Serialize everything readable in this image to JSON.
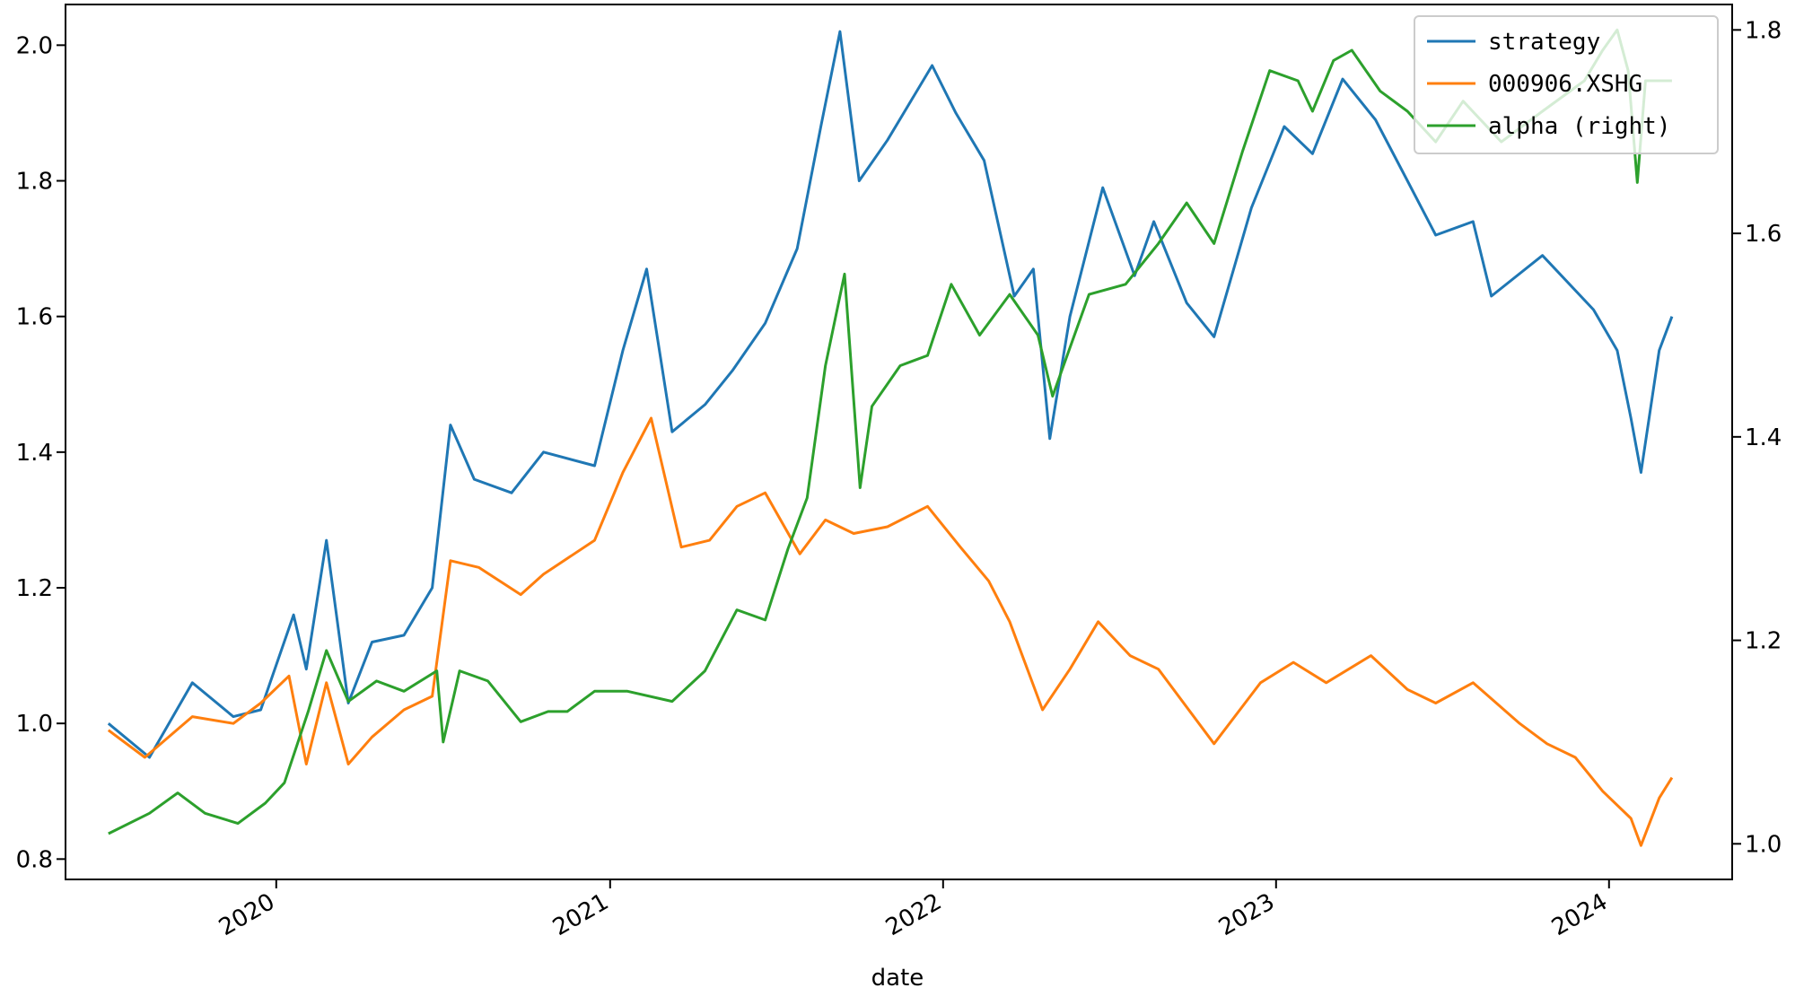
{
  "chart_data": {
    "type": "line",
    "xlabel": "date",
    "x_ticks": [
      "2020",
      "2021",
      "2022",
      "2023",
      "2024"
    ],
    "xlim": [
      "2019-05-15",
      "2024-05-15"
    ],
    "y_left": {
      "lim": [
        0.77,
        2.06
      ],
      "ticks": [
        "0.8",
        "1.0",
        "1.2",
        "1.4",
        "1.6",
        "1.8",
        "2.0"
      ]
    },
    "y_right": {
      "lim": [
        0.965,
        1.825
      ],
      "ticks": [
        "1.0",
        "1.2",
        "1.4",
        "1.6",
        "1.8"
      ]
    },
    "legend": {
      "position": "upper right"
    },
    "grid": false,
    "series": [
      {
        "name": "strategy",
        "axis": "left",
        "color": "#1f77b4",
        "points": [
          [
            "2019-07-01",
            1.0
          ],
          [
            "2019-08-15",
            0.95
          ],
          [
            "2019-10-01",
            1.06
          ],
          [
            "2019-11-15",
            1.01
          ],
          [
            "2019-12-15",
            1.02
          ],
          [
            "2020-01-20",
            1.16
          ],
          [
            "2020-02-03",
            1.08
          ],
          [
            "2020-02-25",
            1.27
          ],
          [
            "2020-03-20",
            1.03
          ],
          [
            "2020-04-15",
            1.12
          ],
          [
            "2020-05-20",
            1.13
          ],
          [
            "2020-06-20",
            1.2
          ],
          [
            "2020-07-10",
            1.44
          ],
          [
            "2020-08-05",
            1.36
          ],
          [
            "2020-09-15",
            1.34
          ],
          [
            "2020-10-20",
            1.4
          ],
          [
            "2020-12-15",
            1.38
          ],
          [
            "2021-01-15",
            1.55
          ],
          [
            "2021-02-10",
            1.67
          ],
          [
            "2021-03-10",
            1.43
          ],
          [
            "2021-04-15",
            1.47
          ],
          [
            "2021-05-15",
            1.52
          ],
          [
            "2021-06-20",
            1.59
          ],
          [
            "2021-07-25",
            1.7
          ],
          [
            "2021-08-20",
            1.88
          ],
          [
            "2021-09-10",
            2.02
          ],
          [
            "2021-10-01",
            1.8
          ],
          [
            "2021-11-01",
            1.86
          ],
          [
            "2021-12-20",
            1.97
          ],
          [
            "2022-01-15",
            1.9
          ],
          [
            "2022-02-15",
            1.83
          ],
          [
            "2022-03-20",
            1.63
          ],
          [
            "2022-04-10",
            1.67
          ],
          [
            "2022-04-28",
            1.42
          ],
          [
            "2022-05-20",
            1.6
          ],
          [
            "2022-06-25",
            1.79
          ],
          [
            "2022-07-30",
            1.66
          ],
          [
            "2022-08-20",
            1.74
          ],
          [
            "2022-09-25",
            1.62
          ],
          [
            "2022-10-25",
            1.57
          ],
          [
            "2022-12-05",
            1.76
          ],
          [
            "2023-01-10",
            1.88
          ],
          [
            "2023-02-10",
            1.84
          ],
          [
            "2023-03-15",
            1.95
          ],
          [
            "2023-04-20",
            1.89
          ],
          [
            "2023-05-25",
            1.8
          ],
          [
            "2023-06-25",
            1.72
          ],
          [
            "2023-08-05",
            1.74
          ],
          [
            "2023-08-25",
            1.63
          ],
          [
            "2023-10-20",
            1.69
          ],
          [
            "2023-12-15",
            1.61
          ],
          [
            "2024-01-10",
            1.55
          ],
          [
            "2024-01-25",
            1.45
          ],
          [
            "2024-02-05",
            1.37
          ],
          [
            "2024-02-25",
            1.55
          ],
          [
            "2024-03-10",
            1.6
          ]
        ]
      },
      {
        "name": "000906.XSHG",
        "axis": "left",
        "color": "#ff7f0e",
        "points": [
          [
            "2019-07-01",
            0.99
          ],
          [
            "2019-08-10",
            0.95
          ],
          [
            "2019-10-01",
            1.01
          ],
          [
            "2019-11-15",
            1.0
          ],
          [
            "2019-12-15",
            1.03
          ],
          [
            "2020-01-15",
            1.07
          ],
          [
            "2020-02-03",
            0.94
          ],
          [
            "2020-02-25",
            1.06
          ],
          [
            "2020-03-20",
            0.94
          ],
          [
            "2020-04-15",
            0.98
          ],
          [
            "2020-05-20",
            1.02
          ],
          [
            "2020-06-20",
            1.04
          ],
          [
            "2020-07-10",
            1.24
          ],
          [
            "2020-08-10",
            1.23
          ],
          [
            "2020-09-25",
            1.19
          ],
          [
            "2020-10-20",
            1.22
          ],
          [
            "2020-12-15",
            1.27
          ],
          [
            "2021-01-15",
            1.37
          ],
          [
            "2021-02-15",
            1.45
          ],
          [
            "2021-03-20",
            1.26
          ],
          [
            "2021-04-20",
            1.27
          ],
          [
            "2021-05-20",
            1.32
          ],
          [
            "2021-06-20",
            1.34
          ],
          [
            "2021-07-28",
            1.25
          ],
          [
            "2021-08-25",
            1.3
          ],
          [
            "2021-09-25",
            1.28
          ],
          [
            "2021-11-01",
            1.29
          ],
          [
            "2021-12-15",
            1.32
          ],
          [
            "2022-01-20",
            1.26
          ],
          [
            "2022-02-20",
            1.21
          ],
          [
            "2022-03-15",
            1.15
          ],
          [
            "2022-04-20",
            1.02
          ],
          [
            "2022-05-20",
            1.08
          ],
          [
            "2022-06-20",
            1.15
          ],
          [
            "2022-07-25",
            1.1
          ],
          [
            "2022-08-25",
            1.08
          ],
          [
            "2022-10-25",
            0.97
          ],
          [
            "2022-12-15",
            1.06
          ],
          [
            "2023-01-20",
            1.09
          ],
          [
            "2023-02-25",
            1.06
          ],
          [
            "2023-04-15",
            1.1
          ],
          [
            "2023-05-25",
            1.05
          ],
          [
            "2023-06-25",
            1.03
          ],
          [
            "2023-08-05",
            1.06
          ],
          [
            "2023-09-25",
            1.0
          ],
          [
            "2023-10-25",
            0.97
          ],
          [
            "2023-11-25",
            0.95
          ],
          [
            "2023-12-25",
            0.9
          ],
          [
            "2024-01-25",
            0.86
          ],
          [
            "2024-02-05",
            0.82
          ],
          [
            "2024-02-25",
            0.89
          ],
          [
            "2024-03-10",
            0.92
          ]
        ]
      },
      {
        "name": "alpha (right)",
        "axis": "right",
        "color": "#2ca02c",
        "points": [
          [
            "2019-07-01",
            1.01
          ],
          [
            "2019-08-15",
            1.03
          ],
          [
            "2019-09-15",
            1.05
          ],
          [
            "2019-10-15",
            1.03
          ],
          [
            "2019-11-20",
            1.02
          ],
          [
            "2019-12-20",
            1.04
          ],
          [
            "2020-01-10",
            1.06
          ],
          [
            "2020-02-05",
            1.13
          ],
          [
            "2020-02-25",
            1.19
          ],
          [
            "2020-03-20",
            1.14
          ],
          [
            "2020-04-20",
            1.16
          ],
          [
            "2020-05-20",
            1.15
          ],
          [
            "2020-06-25",
            1.17
          ],
          [
            "2020-07-02",
            1.1
          ],
          [
            "2020-07-20",
            1.17
          ],
          [
            "2020-08-20",
            1.16
          ],
          [
            "2020-09-25",
            1.12
          ],
          [
            "2020-10-25",
            1.13
          ],
          [
            "2020-11-15",
            1.13
          ],
          [
            "2020-12-15",
            1.15
          ],
          [
            "2021-01-20",
            1.15
          ],
          [
            "2021-03-10",
            1.14
          ],
          [
            "2021-04-15",
            1.17
          ],
          [
            "2021-05-20",
            1.23
          ],
          [
            "2021-06-20",
            1.22
          ],
          [
            "2021-07-15",
            1.29
          ],
          [
            "2021-08-05",
            1.34
          ],
          [
            "2021-08-25",
            1.47
          ],
          [
            "2021-09-15",
            1.56
          ],
          [
            "2021-10-02",
            1.35
          ],
          [
            "2021-10-15",
            1.43
          ],
          [
            "2021-11-15",
            1.47
          ],
          [
            "2021-12-15",
            1.48
          ],
          [
            "2022-01-10",
            1.55
          ],
          [
            "2022-02-10",
            1.5
          ],
          [
            "2022-03-15",
            1.54
          ],
          [
            "2022-04-15",
            1.5
          ],
          [
            "2022-05-01",
            1.44
          ],
          [
            "2022-06-10",
            1.54
          ],
          [
            "2022-07-20",
            1.55
          ],
          [
            "2022-08-25",
            1.59
          ],
          [
            "2022-09-25",
            1.63
          ],
          [
            "2022-10-25",
            1.59
          ],
          [
            "2022-11-25",
            1.68
          ],
          [
            "2022-12-25",
            1.76
          ],
          [
            "2023-01-25",
            1.75
          ],
          [
            "2023-02-10",
            1.72
          ],
          [
            "2023-03-05",
            1.77
          ],
          [
            "2023-03-25",
            1.78
          ],
          [
            "2023-04-25",
            1.74
          ],
          [
            "2023-05-25",
            1.72
          ],
          [
            "2023-06-25",
            1.69
          ],
          [
            "2023-07-25",
            1.73
          ],
          [
            "2023-09-05",
            1.69
          ],
          [
            "2023-10-20",
            1.72
          ],
          [
            "2023-12-05",
            1.75
          ],
          [
            "2023-12-25",
            1.78
          ],
          [
            "2024-01-10",
            1.8
          ],
          [
            "2024-01-22",
            1.76
          ],
          [
            "2024-02-01",
            1.65
          ],
          [
            "2024-02-10",
            1.75
          ],
          [
            "2024-03-10",
            1.75
          ]
        ]
      }
    ]
  }
}
